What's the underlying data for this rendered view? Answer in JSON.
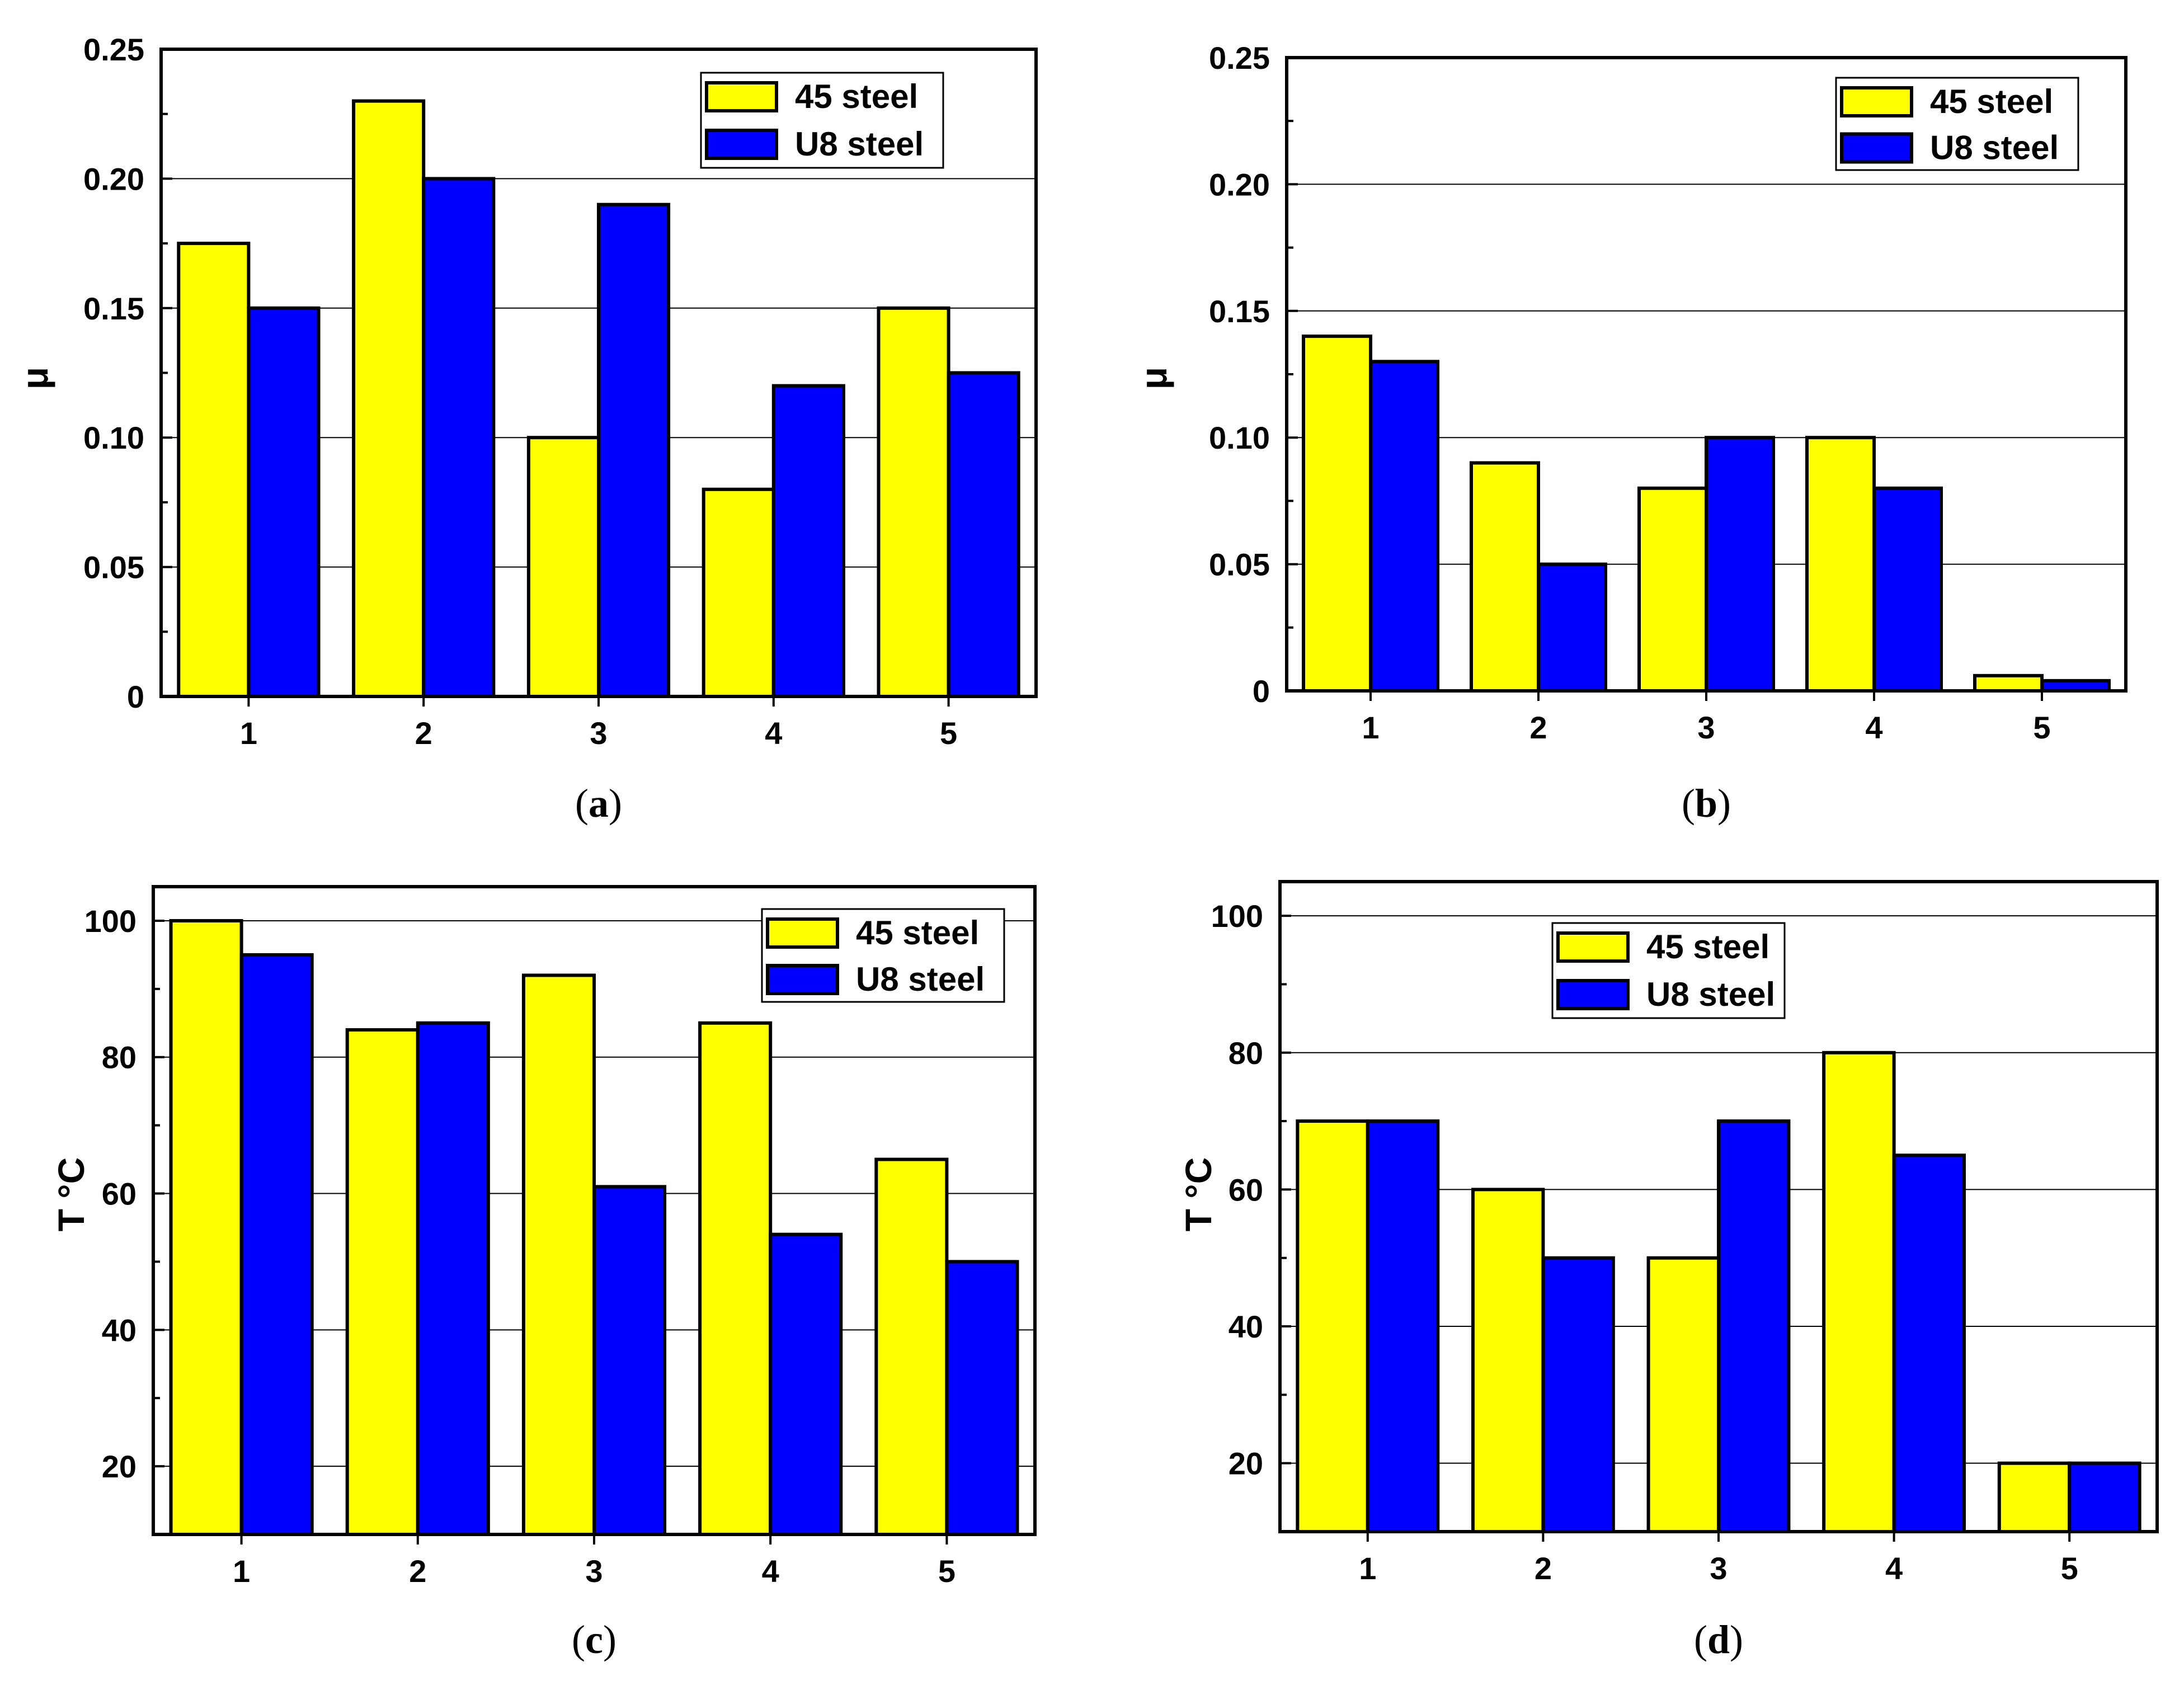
{
  "chart_data": [
    {
      "id": "a",
      "type": "bar",
      "caption": "a",
      "title": "",
      "xlabel": "",
      "ylabel": "μ",
      "categories": [
        "1",
        "2",
        "3",
        "4",
        "5"
      ],
      "ylim": [
        0,
        0.25
      ],
      "yticks": [
        0,
        0.05,
        0.1,
        0.15,
        0.2,
        0.25
      ],
      "ytick_labels": [
        "0",
        "0.05",
        "0.10",
        "0.15",
        "0.20",
        "0.25"
      ],
      "grid": true,
      "legend_position": "top-right",
      "series": [
        {
          "name": "45 steel",
          "color": "#FFFF00",
          "values": [
            0.175,
            0.23,
            0.1,
            0.08,
            0.15
          ]
        },
        {
          "name": "U8 steel",
          "color": "#0000FF",
          "values": [
            0.15,
            0.2,
            0.19,
            0.12,
            0.125
          ]
        }
      ]
    },
    {
      "id": "b",
      "type": "bar",
      "caption": "b",
      "title": "",
      "xlabel": "",
      "ylabel": "μ",
      "categories": [
        "1",
        "2",
        "3",
        "4",
        "5"
      ],
      "ylim": [
        0,
        0.25
      ],
      "yticks": [
        0,
        0.05,
        0.1,
        0.15,
        0.2,
        0.25
      ],
      "ytick_labels": [
        "0",
        "0.05",
        "0.10",
        "0.15",
        "0.20",
        "0.25"
      ],
      "grid": true,
      "legend_position": "top-right",
      "series": [
        {
          "name": "45 steel",
          "color": "#FFFF00",
          "values": [
            0.14,
            0.09,
            0.08,
            0.1,
            0.006
          ]
        },
        {
          "name": "U8 steel",
          "color": "#0000FF",
          "values": [
            0.13,
            0.05,
            0.1,
            0.08,
            0.004
          ]
        }
      ]
    },
    {
      "id": "c",
      "type": "bar",
      "caption": "c",
      "title": "",
      "xlabel": "",
      "ylabel": "T °C",
      "categories": [
        "1",
        "2",
        "3",
        "4",
        "5"
      ],
      "ylim": [
        10,
        105
      ],
      "yticks": [
        20,
        40,
        60,
        80,
        100
      ],
      "ytick_labels": [
        "20",
        "40",
        "60",
        "80",
        "100"
      ],
      "grid": true,
      "legend_position": "top-right",
      "series": [
        {
          "name": "45 steel",
          "color": "#FFFF00",
          "values": [
            100,
            84,
            92,
            85,
            65
          ]
        },
        {
          "name": "U8 steel",
          "color": "#0000FF",
          "values": [
            95,
            85,
            61,
            54,
            50
          ]
        }
      ]
    },
    {
      "id": "d",
      "type": "bar",
      "caption": "d",
      "title": "",
      "xlabel": "",
      "ylabel": "T °C",
      "categories": [
        "1",
        "2",
        "3",
        "4",
        "5"
      ],
      "ylim": [
        10,
        105
      ],
      "yticks": [
        20,
        40,
        60,
        80,
        100
      ],
      "ytick_labels": [
        "20",
        "40",
        "60",
        "80",
        "100"
      ],
      "grid": true,
      "legend_position": "top-center",
      "series": [
        {
          "name": "45 steel",
          "color": "#FFFF00",
          "values": [
            70,
            60,
            50,
            80,
            20
          ]
        },
        {
          "name": "U8 steel",
          "color": "#0000FF",
          "values": [
            70,
            50,
            70,
            65,
            20
          ]
        }
      ]
    }
  ]
}
